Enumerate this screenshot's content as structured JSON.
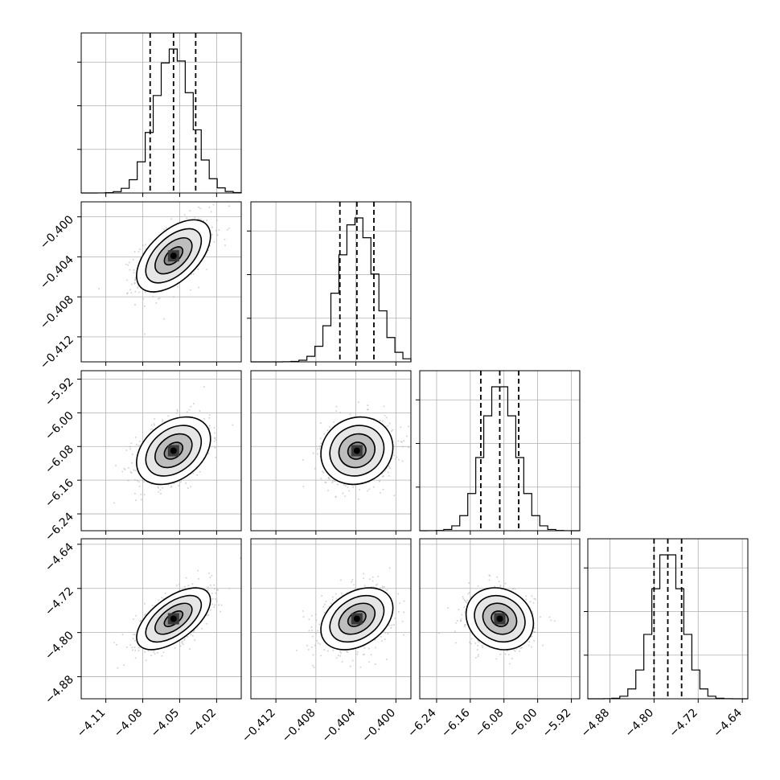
{
  "chart_data": {
    "type": "corner",
    "parameters": [
      {
        "range": [
          -4.13,
          -4.0
        ],
        "ticks": [
          -4.11,
          -4.08,
          -4.05,
          -4.02
        ],
        "tick_labels": [
          "−4.11",
          "−4.08",
          "−4.05",
          "−4.02"
        ],
        "quantiles": [
          -4.074,
          -4.055,
          -4.037
        ],
        "mean": -4.055,
        "sd": 0.015
      },
      {
        "range": [
          -0.4145,
          -0.3985
        ],
        "ticks": [
          -0.412,
          -0.408,
          -0.404,
          -0.4
        ],
        "tick_labels": [
          "−0.412",
          "−0.408",
          "−0.404",
          "−0.400"
        ],
        "quantiles": [
          -0.4056,
          -0.4039,
          -0.4022
        ],
        "mean": -0.4039,
        "sd": 0.0018
      },
      {
        "range": [
          -6.28,
          -5.9
        ],
        "ticks": [
          -6.24,
          -6.16,
          -6.08,
          -6.0,
          -5.92
        ],
        "tick_labels": [
          "−6.24",
          "−6.16",
          "−6.08",
          "−6.00",
          "−5.92"
        ],
        "quantiles": [
          -6.135,
          -6.09,
          -6.045
        ],
        "mean": -6.09,
        "sd": 0.04
      },
      {
        "range": [
          -4.92,
          -4.63
        ],
        "ticks": [
          -4.88,
          -4.8,
          -4.72,
          -4.64
        ],
        "tick_labels": [
          "−4.88",
          "−4.80",
          "−4.72",
          "−4.64"
        ],
        "quantiles": [
          -4.8,
          -4.775,
          -4.75
        ],
        "mean": -4.775,
        "sd": 0.028
      }
    ],
    "correlations": [
      {
        "pair": [
          1,
          0
        ],
        "rho": 0.55
      },
      {
        "pair": [
          2,
          0
        ],
        "rho": 0.35
      },
      {
        "pair": [
          2,
          1
        ],
        "rho": 0.1
      },
      {
        "pair": [
          3,
          0
        ],
        "rho": 0.6
      },
      {
        "pair": [
          3,
          1
        ],
        "rho": 0.35
      },
      {
        "pair": [
          3,
          2
        ],
        "rho": -0.15
      }
    ],
    "histogram_bins": 20,
    "contour_levels_sigma": [
      0.5,
      1.0,
      1.5,
      2.0
    ],
    "diagonal_y_ticks_per_panel": 3,
    "grid": true,
    "line_color": "#000000",
    "scatter_color": "#b0b0b0",
    "grid_color": "#b0b0b0"
  }
}
